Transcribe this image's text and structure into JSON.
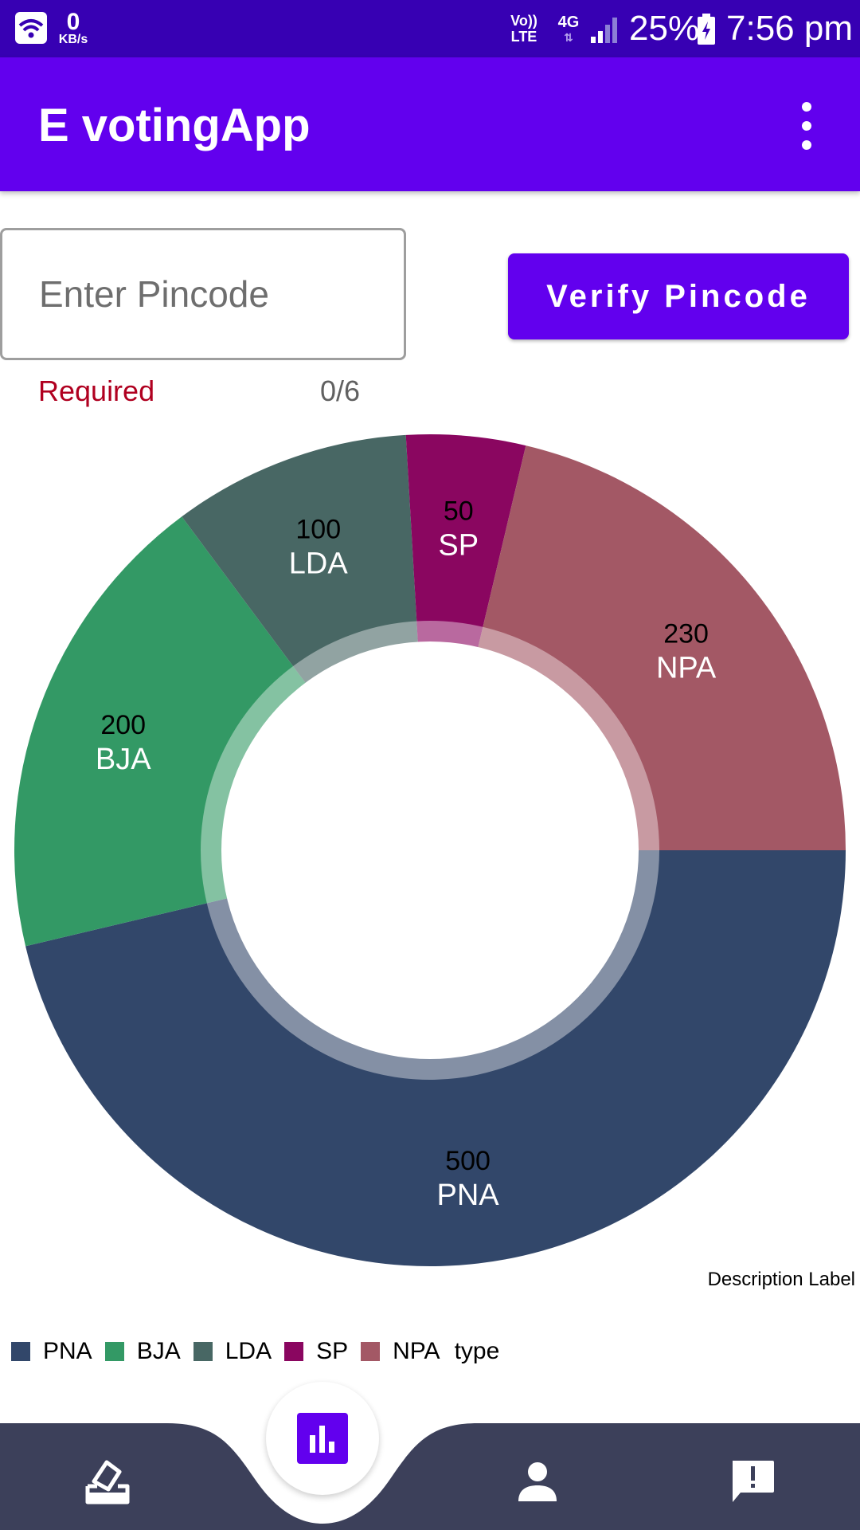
{
  "status_bar": {
    "net_speed_value": "0",
    "net_speed_unit": "KB/s",
    "volte_top": "Vo))",
    "volte_bottom": "LTE",
    "network_type": "4G",
    "battery_percent": "25%",
    "time": "7:56 pm",
    "icons": [
      "wifi-icon",
      "signal-icon",
      "battery-icon"
    ]
  },
  "app_bar": {
    "title": "E votingApp",
    "menu_icon": "more-vert-icon"
  },
  "pincode": {
    "placeholder": "Enter Pincode",
    "value": "",
    "helper_text": "Required",
    "counter": "0/6"
  },
  "verify_button": {
    "label": "Verify Pincode"
  },
  "chart_data": {
    "type": "pie",
    "style": "donut",
    "categories": [
      "PNA",
      "BJA",
      "LDA",
      "SP",
      "NPA"
    ],
    "values": [
      500,
      200,
      100,
      50,
      230
    ],
    "colors": [
      "#32476a",
      "#339965",
      "#486764",
      "#8a0660",
      "#a35865"
    ],
    "legend_title": "type",
    "legend_position": "bottom-left",
    "description": "Description Label"
  },
  "bottom_nav": {
    "items": [
      {
        "name": "vote",
        "icon": "vote-icon"
      },
      {
        "name": "results",
        "icon": "bar-chart-icon"
      },
      {
        "name": "profile",
        "icon": "person-icon"
      },
      {
        "name": "feedback",
        "icon": "feedback-icon"
      }
    ],
    "active": "results",
    "colors": {
      "bar": "#3c405a",
      "accent": "#6200ee"
    }
  }
}
